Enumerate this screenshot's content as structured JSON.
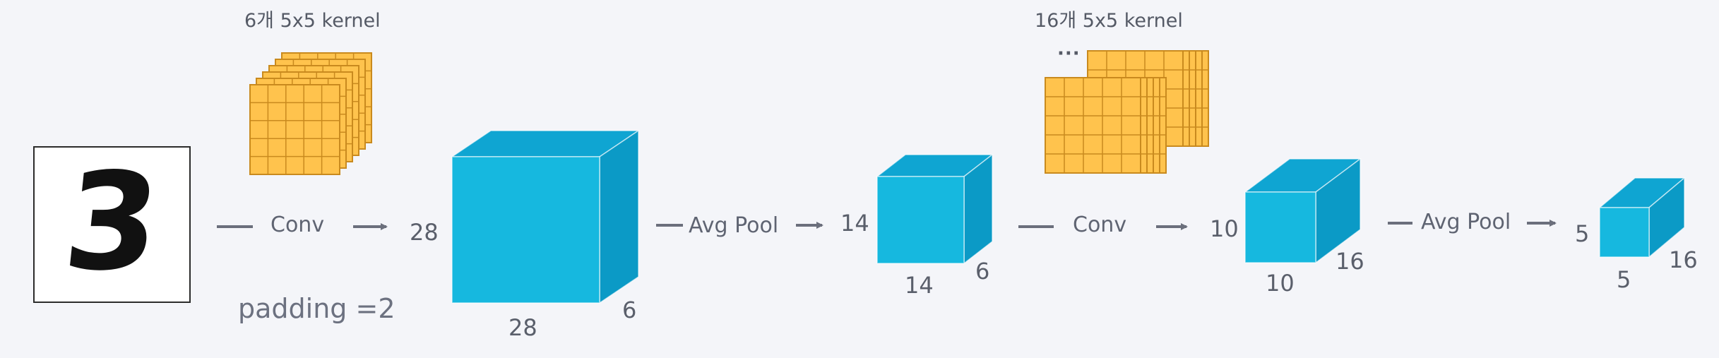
{
  "input": {
    "digit": "3"
  },
  "stage1": {
    "kernel_title": "6개 5x5 kernel",
    "op_label": "Conv",
    "padding_label": "padding =2",
    "out_height": "28",
    "out_width": "28",
    "out_depth": "6"
  },
  "pool1": {
    "op_label": "Avg Pool",
    "out_height": "14",
    "out_width": "14",
    "out_depth": "6"
  },
  "stage2": {
    "kernel_title": "16개 5x5 kernel",
    "ellipsis": "···",
    "op_label": "Conv",
    "out_height": "10",
    "out_width": "10",
    "out_depth": "16"
  },
  "pool2": {
    "op_label": "Avg Pool",
    "out_height": "5",
    "out_width": "5",
    "out_depth": "16"
  },
  "colors": {
    "cube_front": "#16b8df",
    "cube_top": "#0fa5d2",
    "cube_side": "#0b9ac6",
    "kernel_fill": "#ffc34d",
    "kernel_grid": "#c98a1e",
    "arrow": "#6b6f7c"
  }
}
